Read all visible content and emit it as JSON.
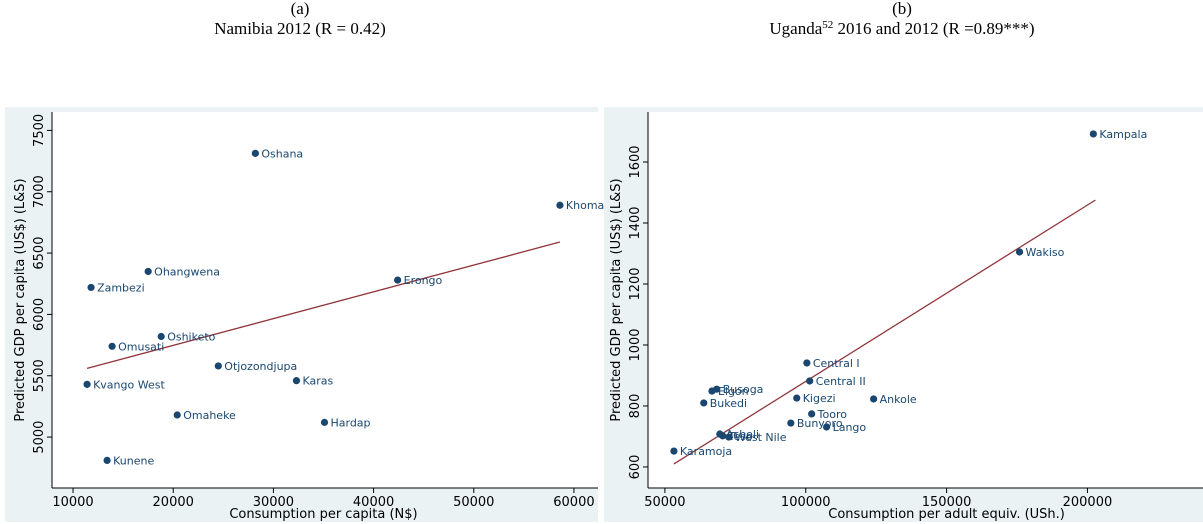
{
  "chart_data": [
    {
      "type": "scatter",
      "panel_label": "(a)",
      "title": "Namibia 2012 (R = 0.42)",
      "x_label": "Consumption per capita (N$)",
      "y_label": "Predicted GDP per capita (US$) (L&S)",
      "xlim": [
        7900,
        62400
      ],
      "ylim": [
        4585,
        7650
      ],
      "xticks": [
        10000,
        20000,
        30000,
        40000,
        50000,
        60000
      ],
      "yticks": [
        5000,
        5500,
        6000,
        6500,
        7000,
        7500
      ],
      "series": [
        {
          "color": "#1a476f",
          "labels": [
            "Oshana",
            "Khomas",
            "Ohangwena",
            "Zambezi",
            "Erongo",
            "Oshiketo",
            "Omusati",
            "Otjozondjupa",
            "Karas",
            "Kvango West",
            "Omaheke",
            "Hardap",
            "Kunene"
          ],
          "x": [
            28200,
            58600,
            17500,
            11800,
            42400,
            18800,
            13900,
            24500,
            32300,
            11400,
            20400,
            35100,
            13400
          ],
          "values": [
            7313,
            6890,
            6350,
            6220,
            6280,
            5820,
            5740,
            5580,
            5460,
            5430,
            5180,
            5120,
            4810
          ]
        }
      ],
      "fit": {
        "color": "#90353b",
        "x": [
          11400,
          58600
        ],
        "values": [
          5560,
          6590
        ]
      }
    },
    {
      "type": "scatter",
      "panel_label": "(b)",
      "title_parts": [
        "Uganda",
        "52",
        " 2016 and 2012 (R =0.89***)"
      ],
      "x_label": "Consumption per adult equiv. (USh.)",
      "y_label": "Predicted GDP per capita (US$) (L&S)",
      "xlim": [
        44000,
        257000
      ],
      "ylim": [
        531,
        1764
      ],
      "xticks": [
        50000,
        100000,
        150000,
        200000,
        250000
      ],
      "yticks": [
        600,
        800,
        1000,
        1200,
        1400,
        1600
      ],
      "series": [
        {
          "color": "#1a476f",
          "labels": [
            "Kampala",
            "Wakiso",
            "Central I",
            "Central II",
            "Busoga",
            "Elgon",
            "Bukedi",
            "Kigezi",
            "Ankole",
            "Tooro",
            "Bunyoro",
            "Lango",
            "Acholi",
            "Teso",
            "West Nile",
            "Karamoja"
          ],
          "x": [
            202100,
            175900,
            100400,
            101400,
            68400,
            66700,
            63800,
            96800,
            124100,
            102100,
            94700,
            107400,
            69500,
            70500,
            72700,
            53200
          ],
          "values": [
            1692,
            1305,
            941,
            882,
            855,
            849,
            810,
            826,
            823,
            774,
            744,
            731,
            708,
            702,
            698,
            652
          ]
        }
      ],
      "fit": {
        "color": "#90353b",
        "x": [
          53200,
          202800
        ],
        "values": [
          610,
          1475
        ]
      }
    }
  ]
}
